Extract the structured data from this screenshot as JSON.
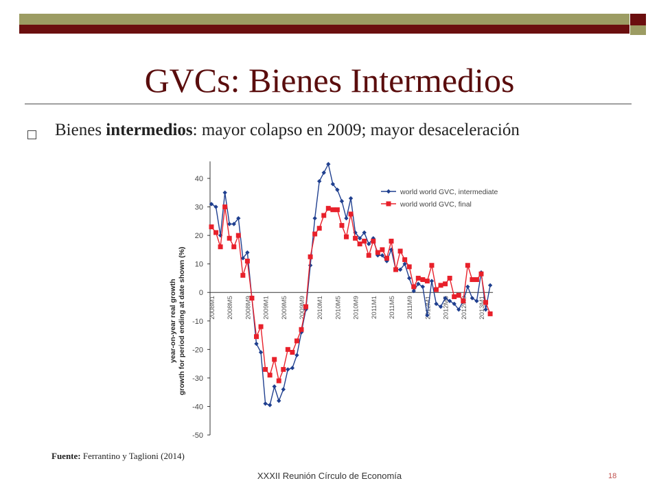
{
  "slide": {
    "title": "GVCs: Bienes Intermedios",
    "bullet_pre": "Bienes ",
    "bullet_bold": "intermedios",
    "bullet_post": ": mayor colapso en 2009; mayor desaceleración",
    "source_label": "Fuente:",
    "source_text": " Ferrantino y Taglioni (2014)",
    "footer": "XXXII Reunión Círculo de Economía",
    "page_number": "18",
    "colors": {
      "maroon": "#6b0f0f",
      "olive": "#9c9c63",
      "title": "#5a0d0d"
    }
  },
  "chart_data": {
    "type": "line",
    "ylabel_line1": "year-on-year real growth",
    "ylabel_line2": "growth for period ending at date shown (%)",
    "ylim": [
      -50,
      45
    ],
    "yticks": [
      40,
      30,
      20,
      10,
      0,
      -10,
      -20,
      -30,
      -40,
      -50
    ],
    "xtick_labels": [
      "2008M1",
      "2008M5",
      "2008M9",
      "2009M1",
      "2009M5",
      "2009M9",
      "2010M1",
      "2010M5",
      "2010M9",
      "2011M1",
      "2011M5",
      "2011M9",
      "2012M1",
      "2012M5",
      "2012M9",
      "2013M1"
    ],
    "xtick_every_months": 4,
    "x_period": "monthly 2008M1 to 2013M4",
    "legend_position": "top-right",
    "series": [
      {
        "name": "world world GVC, intermediate",
        "color": "#1f3f8f",
        "marker": "diamond",
        "values": [
          31,
          30,
          20,
          35,
          24,
          24,
          26,
          12,
          14,
          -2,
          -18,
          -21,
          -39,
          -39.5,
          -33,
          -38,
          -34,
          -27,
          -26.5,
          -22,
          -14,
          -6,
          9.5,
          26,
          39,
          42,
          45,
          38,
          36,
          32,
          26,
          33,
          21,
          19,
          21,
          17,
          19,
          13,
          13,
          11,
          15,
          8,
          8,
          10,
          5,
          0.5,
          3,
          2,
          -8,
          4,
          -4,
          -5,
          -2,
          -3,
          -4,
          -6,
          -3,
          2,
          -2,
          -3,
          7,
          -6,
          2.5
        ]
      },
      {
        "name": "world world GVC, final",
        "color": "#e8202a",
        "marker": "square",
        "values": [
          23,
          21,
          16,
          30,
          19,
          16,
          20,
          6,
          11,
          -2,
          -15.5,
          -12,
          -27,
          -29,
          -23.5,
          -31,
          -27,
          -20,
          -21,
          -17,
          -13,
          -5,
          12.5,
          20.5,
          22.5,
          27,
          29.5,
          29,
          29,
          23.5,
          19.5,
          27.5,
          19,
          17,
          18,
          13,
          18,
          14,
          15,
          12,
          18,
          8,
          14.5,
          11.5,
          9,
          2,
          5,
          4.5,
          4,
          9.5,
          1,
          2.5,
          3,
          5,
          -1.5,
          -1,
          -3,
          9.5,
          4.5,
          4.5,
          6.5,
          -3.5,
          -7.5
        ]
      }
    ]
  }
}
